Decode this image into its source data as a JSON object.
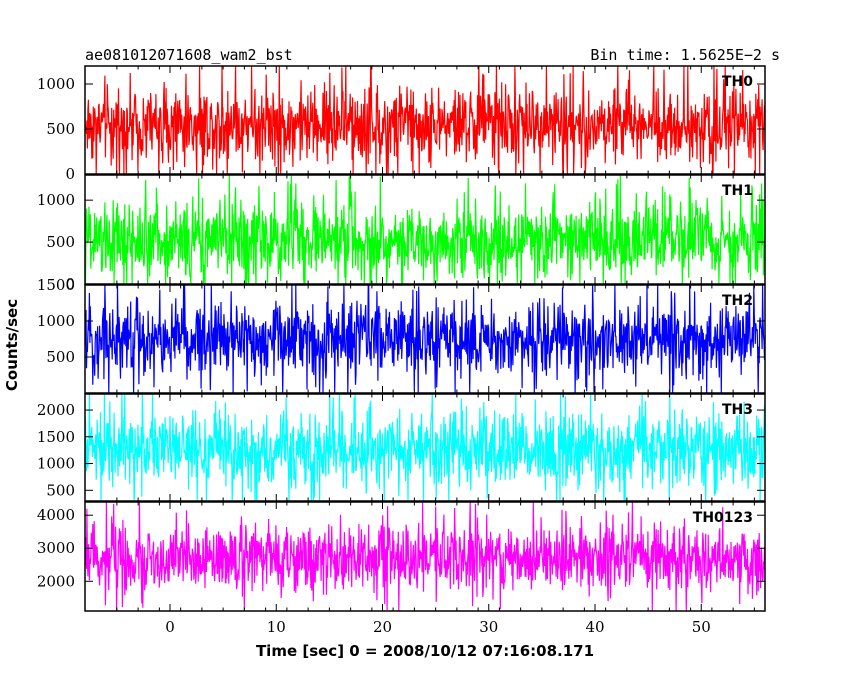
{
  "header": {
    "title": "ae081012071608_wam2_bst",
    "bin_time": "Bin time: 1.5625E−2 s"
  },
  "chart_data": {
    "type": "line",
    "xlabel": "Time [sec] 0 = 2008/10/12 07:16:08.171",
    "ylabel": "Counts/sec",
    "xlim": [
      -8,
      56
    ],
    "x_data_range": [
      -8,
      56
    ],
    "bin_time_s": 0.015625,
    "x_ticks": [
      "0",
      "10",
      "20",
      "30",
      "40",
      "50"
    ],
    "panels": [
      {
        "name": "TH0",
        "color": "#ff0000",
        "ylim": [
          0,
          1200
        ],
        "y_ticks": [
          "0",
          "500",
          "1000"
        ],
        "typical_range": [
          100,
          1000
        ],
        "mean": 550
      },
      {
        "name": "TH1",
        "color": "#00ff00",
        "ylim": [
          0,
          1300
        ],
        "y_ticks": [
          "0",
          "500",
          "1000"
        ],
        "typical_range": [
          50,
          1000
        ],
        "mean": 520
      },
      {
        "name": "TH2",
        "color": "#0000ff",
        "ylim": [
          0,
          1500
        ],
        "y_ticks": [
          "500",
          "1000",
          "1500"
        ],
        "typical_range": [
          200,
          1300
        ],
        "mean": 750
      },
      {
        "name": "TH3",
        "color": "#00ffff",
        "ylim": [
          300,
          2300
        ],
        "y_ticks": [
          "500",
          "1000",
          "1500",
          "2000"
        ],
        "typical_range": [
          500,
          2000
        ],
        "mean": 1250
      },
      {
        "name": "TH0123",
        "color": "#ff00ff",
        "ylim": [
          1100,
          4400
        ],
        "y_ticks": [
          "2000",
          "3000",
          "4000"
        ],
        "typical_range": [
          1600,
          3700
        ],
        "mean": 2700
      }
    ]
  }
}
